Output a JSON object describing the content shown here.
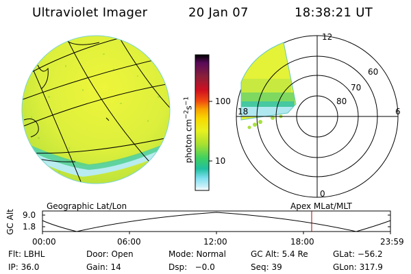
{
  "header": {
    "title": "Ultraviolet Imager",
    "date": "20 Jan 07",
    "time": "18:38:21 UT"
  },
  "colorbar": {
    "unit_text": "photon cm",
    "unit_sup1": "−2",
    "unit_mid": "s",
    "unit_sup2": "−1",
    "ticks": [
      "100",
      "10"
    ],
    "colors": [
      "#000000",
      "#5a0a5a",
      "#8a1f3a",
      "#d01020",
      "#f04a10",
      "#f8a000",
      "#f8d800",
      "#e8f020",
      "#a8e030",
      "#40d060",
      "#20c0a0",
      "#80e0f0",
      "#c8f0f8",
      "#ffffff"
    ]
  },
  "polar_plot": {
    "mlt_labels": [
      "12",
      "6",
      "18",
      "0"
    ],
    "lat_labels": [
      "60",
      "70",
      "80"
    ]
  },
  "orbit_panel": {
    "left_label": "Geographic Lat/Lon",
    "right_label": "Apex  MLat/MLT",
    "y_axis_title": "GC Alt",
    "y_ticks": [
      "9.0",
      "1.8"
    ],
    "x_ticks": [
      "00:00",
      "06:00",
      "12:00",
      "18:00",
      "23:59"
    ],
    "current_time_marker_color": "#a00000"
  },
  "info": {
    "row1": [
      "Flt: LBHL",
      "Door: Open",
      "Mode: Normal",
      "GC Alt: 5.4 Re",
      "GLat: −56.2"
    ],
    "row2": [
      "IP: 36.0",
      "Gain: 14",
      "Dsp:   −0.0",
      "Seq: 39",
      "GLon: 317.9"
    ]
  }
}
